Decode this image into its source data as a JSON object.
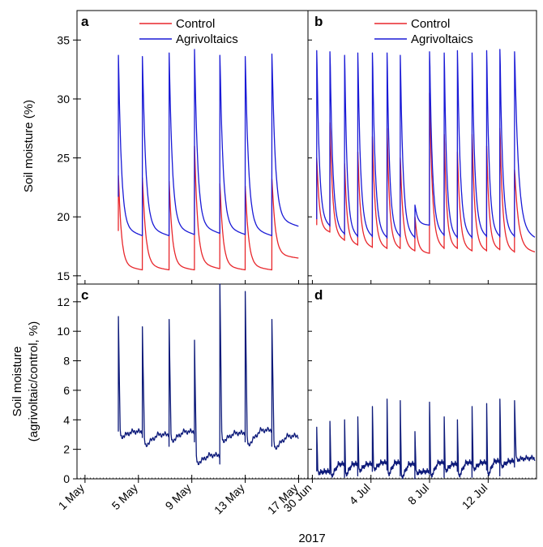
{
  "figure": {
    "xlabel": "2017",
    "ylabel_top": "Soil moisture (%)",
    "ylabel_bottom_line1": "Soil moisture",
    "ylabel_bottom_line2": "(agrivoltaic/control, %)",
    "colors": {
      "control": "#e8262b",
      "agrivoltaics": "#1a1ad6",
      "ratio": "#0d1a7a"
    }
  },
  "chart_data": [
    {
      "panel": "a",
      "type": "line",
      "xlabel": "",
      "ylabel": "Soil moisture (%)",
      "ylim": [
        14.3,
        37.5
      ],
      "yticks": [
        15,
        20,
        25,
        30,
        35
      ],
      "x_ticks": [
        "1 May",
        "5 May",
        "9 May",
        "13 May",
        "17 May"
      ],
      "x_tick_days": [
        1,
        5,
        9,
        13,
        17
      ],
      "xlim_days": [
        0.4,
        17.7
      ],
      "legend": {
        "position": "top-center",
        "entries": [
          "Control",
          "Agrivoltaics"
        ]
      },
      "series": [
        {
          "name": "Control",
          "color": "#e8262b",
          "start_day": 3.5,
          "end_day": 17.0,
          "spike_days": [
            3.5,
            5.3,
            7.3,
            9.2,
            11.1,
            13.0,
            15.0
          ],
          "peaks": [
            23.5,
            23.3,
            23.0,
            26.0,
            22.8,
            22.6,
            23.2
          ],
          "floors": [
            15.5,
            15.5,
            15.5,
            15.6,
            15.5,
            15.5,
            16.5
          ]
        },
        {
          "name": "Agrivoltaics",
          "color": "#1a1ad6",
          "start_day": 3.5,
          "end_day": 17.0,
          "spike_days": [
            3.5,
            5.3,
            7.3,
            9.2,
            11.1,
            13.0,
            15.0
          ],
          "peaks": [
            33.7,
            33.6,
            33.9,
            34.2,
            33.7,
            33.6,
            33.8
          ],
          "floors": [
            18.4,
            18.4,
            18.5,
            18.6,
            18.5,
            18.4,
            19.2
          ]
        }
      ]
    },
    {
      "panel": "b",
      "type": "line",
      "ylim": [
        14.3,
        37.5
      ],
      "yticks": [
        15,
        20,
        25,
        30,
        35
      ],
      "x_ticks": [
        "30 Jun",
        "4 Jul",
        "8 Jul",
        "12 Jul"
      ],
      "x_tick_days": [
        0,
        4,
        8,
        12
      ],
      "xlim_days": [
        -0.3,
        15.3
      ],
      "legend": {
        "position": "top-center",
        "entries": [
          "Control",
          "Agrivoltaics"
        ]
      },
      "series": [
        {
          "name": "Control",
          "color": "#e8262b",
          "start_day": 0.0,
          "end_day": 15.2,
          "spike_days": [
            0.3,
            1.2,
            2.2,
            3.1,
            4.1,
            5.1,
            6.0,
            7.0,
            8.0,
            9.0,
            9.9,
            10.9,
            11.9,
            12.8,
            13.8
          ],
          "peaks": [
            25.0,
            28.0,
            24.5,
            25.5,
            26.8,
            27.5,
            25.0,
            20.0,
            30.5,
            27.0,
            25.5,
            27.0,
            26.0,
            27.5,
            24.0
          ],
          "floors": [
            18.7,
            18.0,
            17.6,
            17.4,
            17.3,
            17.3,
            17.1,
            16.9,
            17.3,
            17.3,
            17.1,
            17.1,
            17.2,
            17.0,
            17.0
          ]
        },
        {
          "name": "Agrivoltaics",
          "color": "#1a1ad6",
          "start_day": 0.0,
          "end_day": 15.2,
          "spike_days": [
            0.3,
            1.2,
            2.2,
            3.1,
            4.1,
            5.1,
            6.0,
            7.0,
            8.0,
            9.0,
            9.9,
            10.9,
            11.9,
            12.8,
            13.8
          ],
          "peaks": [
            34.1,
            34.0,
            33.7,
            33.9,
            33.9,
            33.9,
            33.7,
            21.0,
            34.0,
            33.9,
            34.1,
            33.9,
            34.1,
            34.2,
            34.0
          ],
          "floors": [
            19.2,
            18.5,
            18.3,
            18.3,
            18.2,
            18.3,
            18.2,
            19.3,
            18.4,
            18.2,
            18.2,
            18.3,
            18.3,
            18.3,
            18.2
          ]
        }
      ]
    },
    {
      "panel": "c",
      "type": "line",
      "ylabel": "Soil moisture (agrivoltaic/control, %)",
      "ylim": [
        0,
        13.2
      ],
      "yticks": [
        0,
        2,
        4,
        6,
        8,
        10,
        12
      ],
      "x_ticks": [
        "1 May",
        "5 May",
        "9 May",
        "13 May",
        "17 May"
      ],
      "x_tick_days": [
        1,
        5,
        9,
        13,
        17
      ],
      "xlim_days": [
        0.4,
        17.7
      ],
      "series": [
        {
          "name": "",
          "color": "#0d1a7a",
          "start_day": 3.5,
          "end_day": 17.0,
          "spike_days": [
            3.5,
            5.3,
            7.3,
            9.2,
            11.1,
            13.0,
            15.0
          ],
          "peaks": [
            11.0,
            10.3,
            10.8,
            9.4,
            13.2,
            12.7,
            10.8
          ],
          "floors": [
            2.8,
            2.2,
            2.5,
            1.0,
            2.5,
            2.2,
            2.0
          ],
          "plateaus": [
            3.2,
            3.0,
            3.2,
            1.6,
            3.1,
            3.3,
            2.9
          ]
        }
      ]
    },
    {
      "panel": "d",
      "type": "line",
      "ylim": [
        0,
        13.2
      ],
      "yticks": [
        0,
        2,
        4,
        6,
        8,
        10,
        12
      ],
      "x_ticks": [
        "30 Jun",
        "4 Jul",
        "8 Jul",
        "12 Jul"
      ],
      "x_tick_days": [
        0,
        4,
        8,
        12
      ],
      "xlim_days": [
        -0.3,
        15.3
      ],
      "series": [
        {
          "name": "",
          "color": "#0d1a7a",
          "start_day": 0.0,
          "end_day": 15.2,
          "spike_days": [
            0.3,
            1.2,
            2.2,
            3.1,
            4.1,
            5.1,
            6.0,
            7.0,
            8.0,
            9.0,
            9.9,
            10.9,
            11.9,
            12.8,
            13.8
          ],
          "peaks": [
            3.5,
            3.9,
            4.0,
            4.2,
            4.9,
            5.4,
            5.3,
            3.2,
            5.2,
            4.2,
            4.0,
            4.9,
            5.1,
            5.4,
            5.3
          ],
          "floors": [
            0.4,
            0.1,
            0.2,
            0.5,
            0.6,
            0.2,
            0.0,
            0.4,
            0.1,
            0.5,
            0.1,
            0.6,
            0.2,
            0.8,
            1.3
          ],
          "plateaus": [
            0.5,
            1.0,
            1.0,
            1.0,
            1.1,
            1.1,
            1.0,
            0.5,
            1.1,
            1.0,
            1.1,
            1.1,
            1.2,
            1.2,
            1.4
          ]
        }
      ]
    }
  ]
}
